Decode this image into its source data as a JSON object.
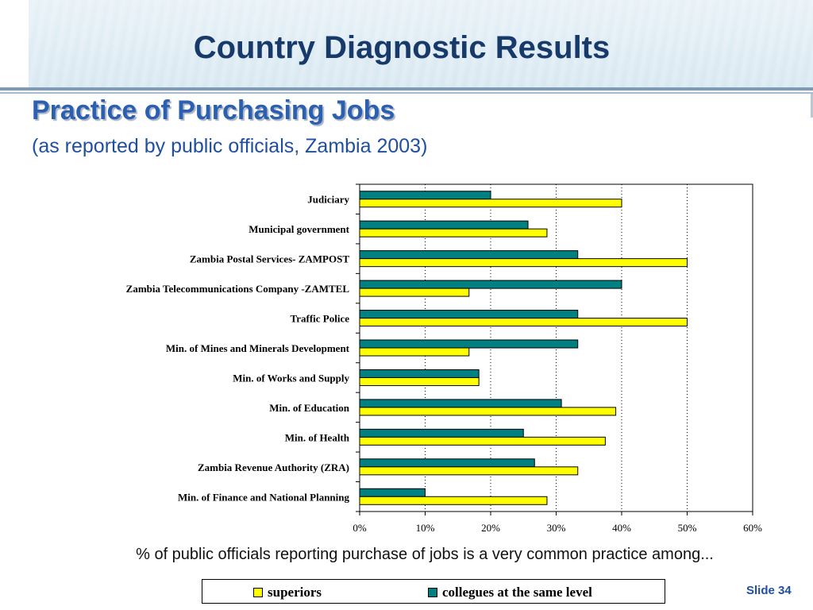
{
  "slide": {
    "title": "Country Diagnostic Results",
    "subtitle": "Practice of Purchasing Jobs",
    "subtitle_note": "(as reported by public officials, Zambia 2003)",
    "note": "% of public officials reporting purchase of jobs is a very common practice among...",
    "slide_number": "Slide 34"
  },
  "legend": {
    "superiors": "superiors",
    "colleagues": "collegues at the same level"
  },
  "colors": {
    "superiors": "#ffff00",
    "colleagues": "#008080"
  },
  "chart_data": {
    "type": "bar",
    "orientation": "horizontal",
    "categories": [
      "Judiciary",
      "Municipal government",
      "Zambia Postal Services- ZAMPOST",
      "Zambia Telecommunications Company -ZAMTEL",
      "Traffic Police",
      "Min. of Mines and Minerals Development",
      "Min. of Works and Supply",
      "Min. of Education",
      "Min. of Health",
      "Zambia Revenue Authority (ZRA)",
      "Min. of Finance and National Planning"
    ],
    "series": [
      {
        "name": "collegues at the same level",
        "values": [
          20,
          25.7,
          33.3,
          40,
          33.3,
          33.3,
          18.2,
          30.8,
          25,
          26.7,
          10
        ]
      },
      {
        "name": "superiors",
        "values": [
          40,
          28.6,
          50,
          16.7,
          50,
          16.7,
          18.2,
          39.1,
          37.5,
          33.3,
          28.6
        ]
      }
    ],
    "xlim": [
      0,
      60
    ],
    "xticks": [
      "0%",
      "10%",
      "20%",
      "30%",
      "40%",
      "50%",
      "60%"
    ],
    "grid": "vertical dotted",
    "legend_position": "bottom"
  }
}
